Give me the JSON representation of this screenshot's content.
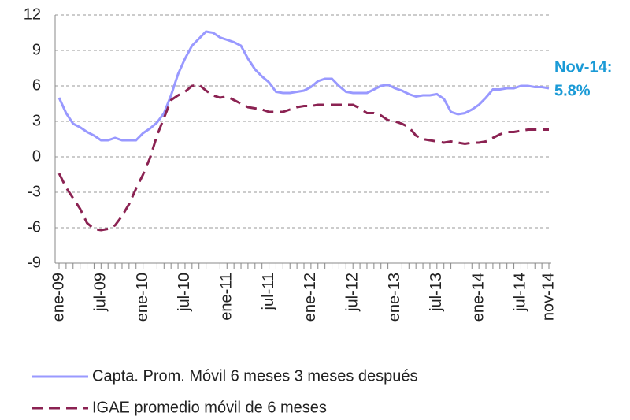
{
  "chart_data": {
    "type": "line",
    "categories": [
      "ene-09",
      null,
      null,
      null,
      null,
      null,
      "jul-09",
      null,
      null,
      null,
      null,
      null,
      "ene-10",
      null,
      null,
      null,
      null,
      null,
      "jul-10",
      null,
      null,
      null,
      null,
      null,
      "ene-11",
      null,
      null,
      null,
      null,
      null,
      "jul-11",
      null,
      null,
      null,
      null,
      null,
      "ene-12",
      null,
      null,
      null,
      null,
      null,
      "jul-12",
      null,
      null,
      null,
      null,
      null,
      "ene-13",
      null,
      null,
      null,
      null,
      null,
      "jul-13",
      null,
      null,
      null,
      null,
      null,
      "ene-14",
      null,
      null,
      null,
      null,
      null,
      "jul-14",
      null,
      null,
      null,
      "nov-14"
    ],
    "series": [
      {
        "name": "Capta. Prom. Móvil 6 meses 3 meses después",
        "color": "#9999ff",
        "dash": false,
        "values": [
          5.0,
          3.7,
          2.8,
          2.5,
          2.1,
          1.8,
          1.4,
          1.4,
          1.6,
          1.4,
          1.4,
          1.4,
          2.0,
          2.4,
          2.9,
          3.7,
          5.2,
          7.0,
          8.3,
          9.4,
          10.0,
          10.6,
          10.5,
          10.1,
          9.9,
          9.7,
          9.4,
          8.3,
          7.4,
          6.8,
          6.3,
          5.5,
          5.4,
          5.4,
          5.5,
          5.6,
          5.9,
          6.4,
          6.6,
          6.6,
          6.0,
          5.5,
          5.4,
          5.4,
          5.4,
          5.7,
          6.0,
          6.1,
          5.8,
          5.6,
          5.3,
          5.1,
          5.2,
          5.2,
          5.3,
          4.9,
          3.8,
          3.6,
          3.7,
          4.0,
          4.4,
          5.0,
          5.7,
          5.7,
          5.8,
          5.8,
          6.0,
          6.0,
          5.9,
          5.9,
          5.8
        ]
      },
      {
        "name": "IGAE promedio móvil de 6 meses",
        "color": "#8b2252",
        "dash": true,
        "values": [
          -1.4,
          -2.6,
          -3.5,
          -4.4,
          -5.6,
          -6.1,
          -6.2,
          -6.1,
          -5.8,
          -5.0,
          -4.0,
          -2.7,
          -1.5,
          -0.1,
          1.8,
          3.3,
          4.8,
          5.2,
          5.5,
          6.0,
          6.1,
          5.6,
          5.2,
          5.0,
          5.1,
          4.8,
          4.5,
          4.2,
          4.1,
          4.0,
          3.8,
          3.8,
          3.8,
          4.0,
          4.2,
          4.3,
          4.3,
          4.4,
          4.4,
          4.4,
          4.4,
          4.4,
          4.4,
          4.1,
          3.7,
          3.7,
          3.5,
          3.1,
          3.0,
          2.8,
          2.5,
          1.8,
          1.5,
          1.4,
          1.3,
          1.2,
          1.3,
          1.2,
          1.1,
          1.2,
          1.2,
          1.3,
          1.6,
          1.9,
          2.1,
          2.1,
          2.2,
          2.3,
          2.3,
          2.3,
          2.3
        ]
      }
    ],
    "annotation": [
      "Nov-14:",
      "5.8%"
    ],
    "annotation_color": "#1a9ad6",
    "ylim": [
      -9,
      12
    ],
    "yticks": [
      -9,
      -6,
      -3,
      0,
      3,
      6,
      9,
      12
    ],
    "grid": true
  }
}
